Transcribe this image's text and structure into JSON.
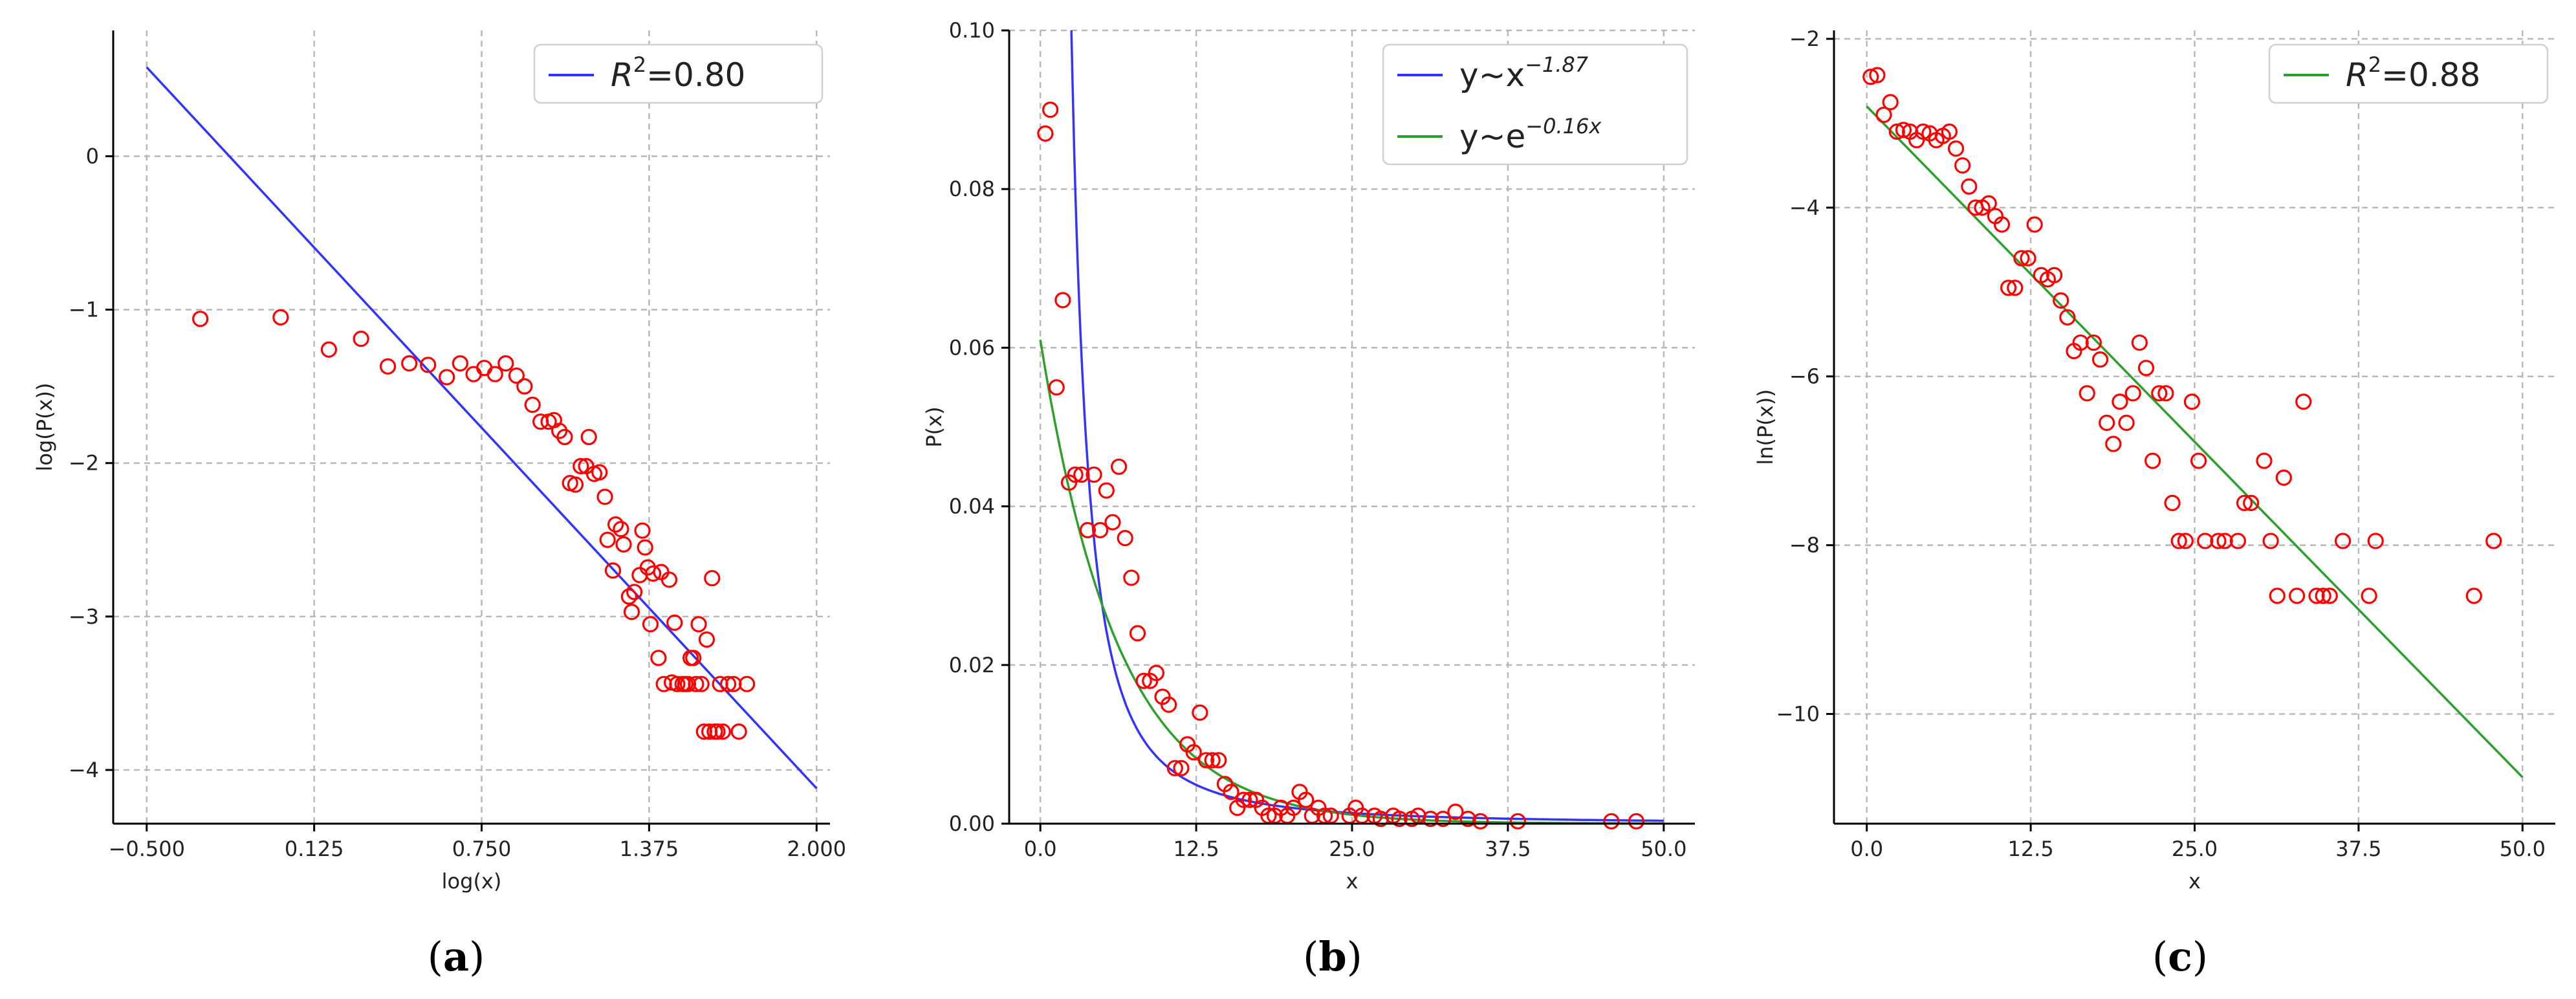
{
  "chart_data": [
    {
      "panel": "a",
      "caption": {
        "open": "(",
        "letter": "a",
        "close": ")"
      },
      "type": "scatter",
      "xlabel": "log(x)",
      "ylabel": "log(P(x))",
      "xlim": [
        -0.625,
        2.05
      ],
      "ylim": [
        -4.35,
        0.82
      ],
      "xticks": [
        -0.5,
        0.125,
        0.75,
        1.375,
        2.0
      ],
      "xtick_labels": [
        "−0.500",
        "0.125",
        "0.750",
        "1.375",
        "2.000"
      ],
      "yticks": [
        0,
        -1,
        -2,
        -3,
        -4
      ],
      "ytick_labels": [
        "0",
        "−1",
        "−2",
        "−3",
        "−4"
      ],
      "legend": {
        "position": "top-right",
        "entries": [
          {
            "label": "R",
            "sup": "2",
            "suffix": "=0.80",
            "color": "#3333ff"
          }
        ]
      },
      "fit": {
        "name": "R2=0.80",
        "color": "#3333ff",
        "x": [
          -0.5,
          2.0
        ],
        "y": [
          0.58,
          -4.12
        ]
      },
      "points": [
        [
          -0.3,
          -1.06
        ],
        [
          0.0,
          -1.05
        ],
        [
          0.18,
          -1.26
        ],
        [
          0.3,
          -1.19
        ],
        [
          0.4,
          -1.37
        ],
        [
          0.48,
          -1.35
        ],
        [
          0.55,
          -1.36
        ],
        [
          0.62,
          -1.44
        ],
        [
          0.67,
          -1.35
        ],
        [
          0.72,
          -1.42
        ],
        [
          0.76,
          -1.38
        ],
        [
          0.8,
          -1.42
        ],
        [
          0.84,
          -1.35
        ],
        [
          0.88,
          -1.43
        ],
        [
          0.91,
          -1.5
        ],
        [
          0.94,
          -1.62
        ],
        [
          0.97,
          -1.73
        ],
        [
          1.0,
          -1.73
        ],
        [
          1.02,
          -1.72
        ],
        [
          1.04,
          -1.79
        ],
        [
          1.06,
          -1.83
        ],
        [
          1.08,
          -2.13
        ],
        [
          1.1,
          -2.14
        ],
        [
          1.12,
          -2.02
        ],
        [
          1.14,
          -2.02
        ],
        [
          1.15,
          -1.83
        ],
        [
          1.17,
          -2.07
        ],
        [
          1.19,
          -2.06
        ],
        [
          1.21,
          -2.22
        ],
        [
          1.22,
          -2.5
        ],
        [
          1.24,
          -2.7
        ],
        [
          1.25,
          -2.4
        ],
        [
          1.27,
          -2.43
        ],
        [
          1.28,
          -2.53
        ],
        [
          1.3,
          -2.87
        ],
        [
          1.31,
          -2.97
        ],
        [
          1.32,
          -2.84
        ],
        [
          1.34,
          -2.73
        ],
        [
          1.35,
          -2.44
        ],
        [
          1.36,
          -2.55
        ],
        [
          1.37,
          -2.68
        ],
        [
          1.38,
          -3.05
        ],
        [
          1.39,
          -2.72
        ],
        [
          1.41,
          -3.27
        ],
        [
          1.42,
          -2.71
        ],
        [
          1.43,
          -3.44
        ],
        [
          1.45,
          -2.76
        ],
        [
          1.46,
          -3.43
        ],
        [
          1.47,
          -3.04
        ],
        [
          1.48,
          -3.44
        ],
        [
          1.5,
          -3.44
        ],
        [
          1.51,
          -3.44
        ],
        [
          1.52,
          -3.44
        ],
        [
          1.53,
          -3.27
        ],
        [
          1.54,
          -3.27
        ],
        [
          1.55,
          -3.44
        ],
        [
          1.56,
          -3.05
        ],
        [
          1.57,
          -3.44
        ],
        [
          1.58,
          -3.75
        ],
        [
          1.59,
          -3.15
        ],
        [
          1.6,
          -3.75
        ],
        [
          1.61,
          -2.75
        ],
        [
          1.62,
          -3.75
        ],
        [
          1.63,
          -3.75
        ],
        [
          1.64,
          -3.44
        ],
        [
          1.65,
          -3.75
        ],
        [
          1.67,
          -3.44
        ],
        [
          1.69,
          -3.44
        ],
        [
          1.71,
          -3.75
        ],
        [
          1.74,
          -3.44
        ]
      ]
    },
    {
      "panel": "b",
      "caption": {
        "open": "(",
        "letter": "b",
        "close": ")"
      },
      "type": "scatter",
      "xlabel": "x",
      "ylabel": "P(x)",
      "xlim": [
        -2.5,
        52.5
      ],
      "ylim": [
        0.0,
        0.1
      ],
      "xticks": [
        0.0,
        12.5,
        25.0,
        37.5,
        50.0
      ],
      "xtick_labels": [
        "0.0",
        "12.5",
        "25.0",
        "37.5",
        "50.0"
      ],
      "yticks": [
        0.0,
        0.02,
        0.04,
        0.06,
        0.08,
        0.1
      ],
      "ytick_labels": [
        "0.00",
        "0.02",
        "0.04",
        "0.06",
        "0.08",
        "0.10"
      ],
      "legend": {
        "position": "top-right",
        "entries": [
          {
            "label": "y~x",
            "sup": "−1.87",
            "color": "#3333ff"
          },
          {
            "label": "y~e",
            "sup": "−0.16x",
            "color": "#2ca02c"
          }
        ]
      },
      "fits": [
        {
          "name": "y~x^-1.87",
          "color": "#3333ff",
          "model": "power",
          "a": 0.55,
          "b": -1.87
        },
        {
          "name": "y~e^-0.16x",
          "color": "#2ca02c",
          "model": "exp",
          "a": 0.061,
          "b": -0.16
        }
      ],
      "points": [
        [
          0.4,
          0.087
        ],
        [
          0.8,
          0.09
        ],
        [
          1.3,
          0.055
        ],
        [
          1.8,
          0.066
        ],
        [
          2.3,
          0.043
        ],
        [
          2.8,
          0.044
        ],
        [
          3.3,
          0.044
        ],
        [
          3.8,
          0.037
        ],
        [
          4.3,
          0.044
        ],
        [
          4.8,
          0.037
        ],
        [
          5.3,
          0.042
        ],
        [
          5.8,
          0.038
        ],
        [
          6.3,
          0.045
        ],
        [
          6.8,
          0.036
        ],
        [
          7.3,
          0.031
        ],
        [
          7.8,
          0.024
        ],
        [
          8.3,
          0.018
        ],
        [
          8.8,
          0.018
        ],
        [
          9.3,
          0.019
        ],
        [
          9.8,
          0.016
        ],
        [
          10.3,
          0.015
        ],
        [
          10.8,
          0.007
        ],
        [
          11.3,
          0.007
        ],
        [
          11.8,
          0.01
        ],
        [
          12.3,
          0.009
        ],
        [
          12.8,
          0.014
        ],
        [
          13.3,
          0.008
        ],
        [
          13.8,
          0.008
        ],
        [
          14.3,
          0.008
        ],
        [
          14.8,
          0.005
        ],
        [
          15.3,
          0.004
        ],
        [
          15.8,
          0.002
        ],
        [
          16.3,
          0.003
        ],
        [
          16.8,
          0.003
        ],
        [
          17.3,
          0.003
        ],
        [
          17.8,
          0.002
        ],
        [
          18.3,
          0.001
        ],
        [
          18.8,
          0.001
        ],
        [
          19.3,
          0.002
        ],
        [
          19.8,
          0.001
        ],
        [
          20.3,
          0.002
        ],
        [
          20.8,
          0.004
        ],
        [
          21.3,
          0.003
        ],
        [
          21.8,
          0.001
        ],
        [
          22.3,
          0.002
        ],
        [
          22.8,
          0.001
        ],
        [
          23.3,
          0.001
        ],
        [
          24.8,
          0.001
        ],
        [
          25.3,
          0.002
        ],
        [
          25.8,
          0.001
        ],
        [
          26.8,
          0.001
        ],
        [
          27.3,
          0.0006
        ],
        [
          28.3,
          0.001
        ],
        [
          28.8,
          0.0006
        ],
        [
          29.8,
          0.0006
        ],
        [
          30.3,
          0.001
        ],
        [
          31.3,
          0.0006
        ],
        [
          32.3,
          0.0006
        ],
        [
          33.3,
          0.0015
        ],
        [
          34.3,
          0.0006
        ],
        [
          35.3,
          0.0003
        ],
        [
          38.3,
          0.0003
        ],
        [
          45.8,
          0.0003
        ],
        [
          47.8,
          0.0003
        ]
      ]
    },
    {
      "panel": "c",
      "caption": {
        "open": "(",
        "letter": "c",
        "close": ")"
      },
      "type": "scatter",
      "xlabel": "x",
      "ylabel": "ln(P(x))",
      "xlim": [
        -2.5,
        52.5
      ],
      "ylim": [
        -11.3,
        -1.9
      ],
      "xticks": [
        0.0,
        12.5,
        25.0,
        37.5,
        50.0
      ],
      "xtick_labels": [
        "0.0",
        "12.5",
        "25.0",
        "37.5",
        "50.0"
      ],
      "yticks": [
        -2,
        -4,
        -6,
        -8,
        -10
      ],
      "ytick_labels": [
        "−2",
        "−4",
        "−6",
        "−8",
        "−10"
      ],
      "legend": {
        "position": "top-right",
        "entries": [
          {
            "label": "R",
            "sup": "2",
            "suffix": "=0.88",
            "color": "#2ca02c"
          }
        ]
      },
      "fit": {
        "name": "R2=0.88",
        "color": "#2ca02c",
        "x": [
          0.0,
          50.0
        ],
        "y": [
          -2.8,
          -10.75
        ]
      },
      "points": [
        [
          0.3,
          -2.45
        ],
        [
          0.8,
          -2.43
        ],
        [
          1.3,
          -2.9
        ],
        [
          1.8,
          -2.75
        ],
        [
          2.3,
          -3.1
        ],
        [
          2.8,
          -3.08
        ],
        [
          3.3,
          -3.1
        ],
        [
          3.8,
          -3.2
        ],
        [
          4.3,
          -3.1
        ],
        [
          4.8,
          -3.12
        ],
        [
          5.3,
          -3.2
        ],
        [
          5.8,
          -3.15
        ],
        [
          6.3,
          -3.1
        ],
        [
          6.8,
          -3.3
        ],
        [
          7.3,
          -3.5
        ],
        [
          7.8,
          -3.75
        ],
        [
          8.3,
          -4.0
        ],
        [
          8.8,
          -4.0
        ],
        [
          9.3,
          -3.95
        ],
        [
          9.8,
          -4.1
        ],
        [
          10.3,
          -4.2
        ],
        [
          10.8,
          -4.95
        ],
        [
          11.3,
          -4.95
        ],
        [
          11.8,
          -4.6
        ],
        [
          12.3,
          -4.6
        ],
        [
          12.8,
          -4.2
        ],
        [
          13.3,
          -4.8
        ],
        [
          13.8,
          -4.85
        ],
        [
          14.3,
          -4.8
        ],
        [
          14.8,
          -5.1
        ],
        [
          15.3,
          -5.3
        ],
        [
          15.8,
          -5.7
        ],
        [
          16.3,
          -5.6
        ],
        [
          16.8,
          -6.2
        ],
        [
          17.3,
          -5.6
        ],
        [
          17.8,
          -5.8
        ],
        [
          18.3,
          -6.55
        ],
        [
          18.8,
          -6.8
        ],
        [
          19.3,
          -6.3
        ],
        [
          19.8,
          -6.55
        ],
        [
          20.3,
          -6.2
        ],
        [
          20.8,
          -5.6
        ],
        [
          21.3,
          -5.9
        ],
        [
          21.8,
          -7.0
        ],
        [
          22.3,
          -6.2
        ],
        [
          22.8,
          -6.2
        ],
        [
          23.3,
          -7.5
        ],
        [
          23.8,
          -7.95
        ],
        [
          24.3,
          -7.95
        ],
        [
          24.8,
          -6.3
        ],
        [
          25.3,
          -7.0
        ],
        [
          25.8,
          -7.95
        ],
        [
          26.8,
          -7.95
        ],
        [
          27.3,
          -7.95
        ],
        [
          28.3,
          -7.95
        ],
        [
          28.8,
          -7.5
        ],
        [
          29.3,
          -7.5
        ],
        [
          30.3,
          -7.0
        ],
        [
          30.8,
          -7.95
        ],
        [
          31.3,
          -8.6
        ],
        [
          31.8,
          -7.2
        ],
        [
          32.8,
          -8.6
        ],
        [
          33.3,
          -6.3
        ],
        [
          34.3,
          -8.6
        ],
        [
          34.8,
          -8.6
        ],
        [
          35.3,
          -8.6
        ],
        [
          36.3,
          -7.95
        ],
        [
          38.3,
          -8.6
        ],
        [
          38.8,
          -7.95
        ],
        [
          46.3,
          -8.6
        ],
        [
          47.8,
          -7.95
        ]
      ]
    }
  ]
}
